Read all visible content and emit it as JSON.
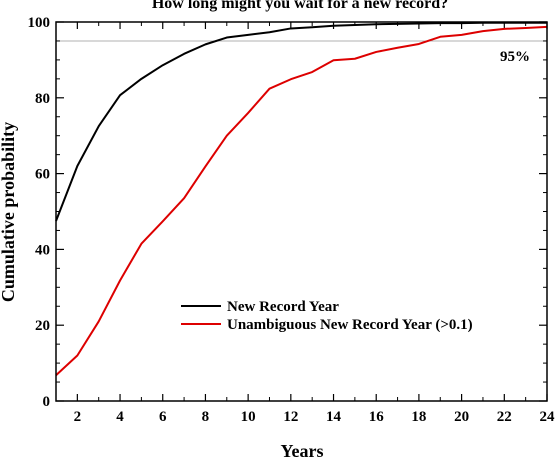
{
  "chart_data": {
    "type": "line",
    "title": "How long might you wait for a new record?",
    "xlabel": "Years",
    "ylabel": "Cumulative probability",
    "xlim": [
      1,
      24
    ],
    "ylim": [
      0,
      100
    ],
    "x_ticks": [
      2,
      4,
      6,
      8,
      10,
      12,
      14,
      16,
      18,
      20,
      22,
      24
    ],
    "y_ticks": [
      0,
      20,
      40,
      60,
      80,
      100
    ],
    "reference_line": {
      "y": 95,
      "label": "95%",
      "color": "#b0b0b0"
    },
    "legend_position": "center-bottom",
    "grid": false,
    "series": [
      {
        "name": "New Record Year",
        "color": "#000000",
        "x": [
          1,
          2,
          3,
          4,
          5,
          6,
          7,
          8,
          9,
          10,
          11,
          12,
          13,
          14,
          15,
          16,
          17,
          18,
          19,
          20,
          21,
          22,
          23,
          24
        ],
        "values": [
          47.5,
          62,
          72.5,
          80.7,
          85,
          88.6,
          91.6,
          94.1,
          95.9,
          96.6,
          97.3,
          98.3,
          98.6,
          99.0,
          99.2,
          99.4,
          99.5,
          99.6,
          99.7,
          99.7,
          99.8,
          99.8,
          99.8,
          99.8
        ]
      },
      {
        "name": "Unambiguous New Record Year (>0.1)",
        "color": "#dd0000",
        "x": [
          1,
          2,
          3,
          4,
          5,
          6,
          7,
          8,
          9,
          10,
          11,
          12,
          13,
          14,
          15,
          16,
          17,
          18,
          19,
          20,
          21,
          22,
          23,
          24
        ],
        "values": [
          6.8,
          12,
          21,
          31.8,
          41.5,
          47.4,
          53.5,
          61.9,
          70,
          76,
          82.4,
          84.9,
          86.8,
          89.9,
          90.3,
          92.1,
          93.2,
          94.2,
          96.1,
          96.6,
          97.6,
          98.2,
          98.4,
          98.7
        ]
      }
    ]
  }
}
